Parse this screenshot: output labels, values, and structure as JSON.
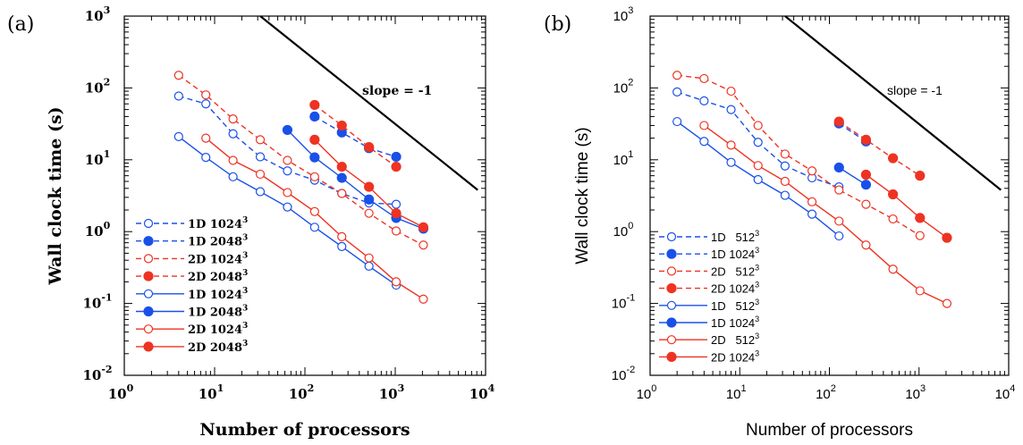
{
  "chart_data": [
    {
      "panel_label": "(a)",
      "type": "line",
      "xlabel": "Number of processors",
      "ylabel": "Wall clock time (s)",
      "xscale": "log",
      "yscale": "log",
      "xlim": [
        1,
        10000
      ],
      "ylim": [
        0.01,
        1000
      ],
      "xticks": [
        {
          "base": "10",
          "exp": "0"
        },
        {
          "base": "10",
          "exp": "1"
        },
        {
          "base": "10",
          "exp": "2"
        },
        {
          "base": "10",
          "exp": "3"
        },
        {
          "base": "10",
          "exp": "4"
        }
      ],
      "yticks": [
        {
          "base": "10",
          "exp": "-2"
        },
        {
          "base": "10",
          "exp": "-1"
        },
        {
          "base": "10",
          "exp": "0"
        },
        {
          "base": "10",
          "exp": "1"
        },
        {
          "base": "10",
          "exp": "2"
        },
        {
          "base": "10",
          "exp": "3"
        }
      ],
      "annotation": "slope = -1",
      "reference_line": {
        "x": [
          32,
          8192
        ],
        "y": [
          1000,
          3.8
        ]
      },
      "legend_position": "bottom-left",
      "series": [
        {
          "name": "1D 1024",
          "sup": "3",
          "color": "#1a50e8",
          "dashed": true,
          "filled": false,
          "x": [
            4,
            8,
            16,
            32,
            64,
            128,
            256,
            512,
            1024
          ],
          "y": [
            77,
            60,
            23,
            11,
            7,
            5.2,
            3.4,
            2.5,
            2.4
          ]
        },
        {
          "name": "1D 2048",
          "sup": "3",
          "color": "#1a50e8",
          "dashed": true,
          "filled": true,
          "x": [
            128,
            256,
            512,
            1024
          ],
          "y": [
            40,
            24,
            14.5,
            11
          ]
        },
        {
          "name": "2D 1024",
          "sup": "3",
          "color": "#ee3322",
          "dashed": true,
          "filled": false,
          "x": [
            4,
            8,
            16,
            32,
            64,
            128,
            256,
            512,
            1024,
            2048
          ],
          "y": [
            150,
            80,
            37,
            19,
            9.8,
            5.8,
            3.4,
            1.8,
            1.02,
            0.65
          ]
        },
        {
          "name": "2D 2048",
          "sup": "3",
          "color": "#ee3322",
          "dashed": true,
          "filled": true,
          "x": [
            128,
            256,
            512,
            1024
          ],
          "y": [
            58,
            30,
            15,
            8
          ]
        },
        {
          "name": "1D 1024",
          "sup": "3",
          "color": "#1a50e8",
          "dashed": false,
          "filled": false,
          "x": [
            4,
            8,
            16,
            32,
            64,
            128,
            256,
            512,
            1024
          ],
          "y": [
            21,
            10.8,
            5.8,
            3.6,
            2.2,
            1.15,
            0.62,
            0.33,
            0.18
          ]
        },
        {
          "name": "1D 2048",
          "sup": "3",
          "color": "#1a50e8",
          "dashed": false,
          "filled": true,
          "x": [
            64,
            128,
            256,
            512,
            1024,
            2048
          ],
          "y": [
            26,
            10.8,
            5.6,
            2.8,
            1.55,
            1.1
          ]
        },
        {
          "name": "2D 1024",
          "sup": "3",
          "color": "#ee3322",
          "dashed": false,
          "filled": false,
          "x": [
            8,
            16,
            32,
            64,
            128,
            256,
            512,
            1024,
            2048
          ],
          "y": [
            20,
            9.8,
            6.3,
            3.5,
            1.9,
            0.85,
            0.43,
            0.2,
            0.115
          ]
        },
        {
          "name": "2D 2048",
          "sup": "3",
          "color": "#ee3322",
          "dashed": false,
          "filled": true,
          "x": [
            128,
            256,
            512,
            1024,
            2048
          ],
          "y": [
            19,
            8,
            4.2,
            1.8,
            1.15
          ]
        }
      ]
    },
    {
      "panel_label": "(b)",
      "type": "line",
      "xlabel": "Number of processors",
      "ylabel": "Wall clock time (s)",
      "xscale": "log",
      "yscale": "log",
      "xlim": [
        1,
        10000
      ],
      "ylim": [
        0.01,
        1000
      ],
      "xticks": [
        {
          "base": "10",
          "exp": "0"
        },
        {
          "base": "10",
          "exp": "1"
        },
        {
          "base": "10",
          "exp": "2"
        },
        {
          "base": "10",
          "exp": "3"
        },
        {
          "base": "10",
          "exp": "4"
        }
      ],
      "yticks": [
        {
          "base": "10",
          "exp": "-2"
        },
        {
          "base": "10",
          "exp": "-1"
        },
        {
          "base": "10",
          "exp": "0"
        },
        {
          "base": "10",
          "exp": "1"
        },
        {
          "base": "10",
          "exp": "2"
        },
        {
          "base": "10",
          "exp": "3"
        }
      ],
      "annotation": "slope = -1",
      "reference_line": {
        "x": [
          32,
          8192
        ],
        "y": [
          1000,
          3.8
        ]
      },
      "legend_position": "bottom-left",
      "series": [
        {
          "name": "1D   512",
          "sup": "3",
          "color": "#1a50e8",
          "dashed": true,
          "filled": false,
          "x": [
            2,
            4,
            8,
            16,
            32,
            64,
            128
          ],
          "y": [
            88,
            66,
            50,
            17.5,
            8.2,
            5.6,
            4.2
          ]
        },
        {
          "name": "1D 1024",
          "sup": "3",
          "color": "#1a50e8",
          "dashed": true,
          "filled": true,
          "x": [
            128,
            256
          ],
          "y": [
            32,
            18
          ]
        },
        {
          "name": "2D   512",
          "sup": "3",
          "color": "#ee3322",
          "dashed": true,
          "filled": false,
          "x": [
            2,
            4,
            8,
            16,
            32,
            64,
            128,
            256,
            512,
            1024
          ],
          "y": [
            150,
            135,
            90,
            30,
            12,
            7,
            3.8,
            2.4,
            1.5,
            0.88
          ]
        },
        {
          "name": "2D 1024",
          "sup": "3",
          "color": "#ee3322",
          "dashed": true,
          "filled": true,
          "x": [
            128,
            256,
            512,
            1024
          ],
          "y": [
            34,
            19,
            10.5,
            6
          ]
        },
        {
          "name": "1D   512",
          "sup": "3",
          "color": "#1a50e8",
          "dashed": false,
          "filled": false,
          "x": [
            2,
            4,
            8,
            16,
            32,
            64,
            128
          ],
          "y": [
            34,
            18,
            9.2,
            5.3,
            3.2,
            1.75,
            0.87
          ]
        },
        {
          "name": "1D 1024",
          "sup": "3",
          "color": "#1a50e8",
          "dashed": false,
          "filled": true,
          "x": [
            128,
            256
          ],
          "y": [
            7.8,
            4.5
          ]
        },
        {
          "name": "2D   512",
          "sup": "3",
          "color": "#ee3322",
          "dashed": false,
          "filled": false,
          "x": [
            4,
            8,
            16,
            32,
            64,
            128,
            256,
            512,
            1024,
            2048
          ],
          "y": [
            30,
            16,
            8.3,
            5,
            2.6,
            1.4,
            0.65,
            0.3,
            0.15,
            0.1
          ]
        },
        {
          "name": "2D 1024",
          "sup": "3",
          "color": "#ee3322",
          "dashed": false,
          "filled": true,
          "x": [
            256,
            512,
            1024,
            2048
          ],
          "y": [
            6.2,
            3.3,
            1.55,
            0.82
          ]
        }
      ]
    }
  ]
}
